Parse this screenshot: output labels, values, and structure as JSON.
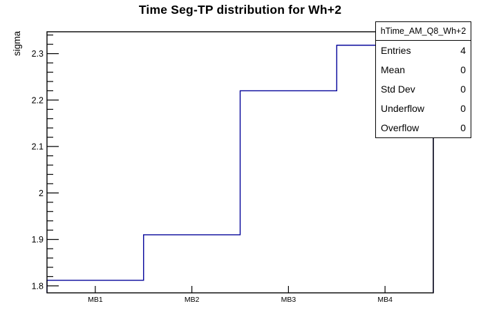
{
  "title": "Time Seg-TP distribution for Wh+2",
  "stats": {
    "header": "hTime_AM_Q8_Wh+2",
    "rows": [
      {
        "label": "Entries",
        "value": "4"
      },
      {
        "label": "Mean",
        "value": "0"
      },
      {
        "label": "Std Dev",
        "value": "0"
      },
      {
        "label": "Underflow",
        "value": "0"
      },
      {
        "label": "Overflow",
        "value": "0"
      }
    ]
  },
  "chart_data": {
    "type": "step-histogram",
    "title": "Time Seg-TP distribution for Wh+2",
    "categories": [
      "MB1",
      "MB2",
      "MB3",
      "MB4"
    ],
    "values": [
      1.812,
      1.91,
      2.22,
      2.318
    ],
    "xlabel": "",
    "ylabel": "sigma",
    "ylim": [
      1.785,
      2.347
    ],
    "y_major_ticks": [
      1.8,
      1.9,
      2.0,
      2.1,
      2.2,
      2.3
    ],
    "y_major_labels": [
      "1.8",
      "1.9",
      "2",
      "2.1",
      "2.2",
      "2.3"
    ],
    "y_minor_step": 0.02,
    "grid": false,
    "legend": "none (stats box top-right)",
    "line_color": "#000099",
    "frame_color": "#000000",
    "background_color": "#ffffff"
  }
}
